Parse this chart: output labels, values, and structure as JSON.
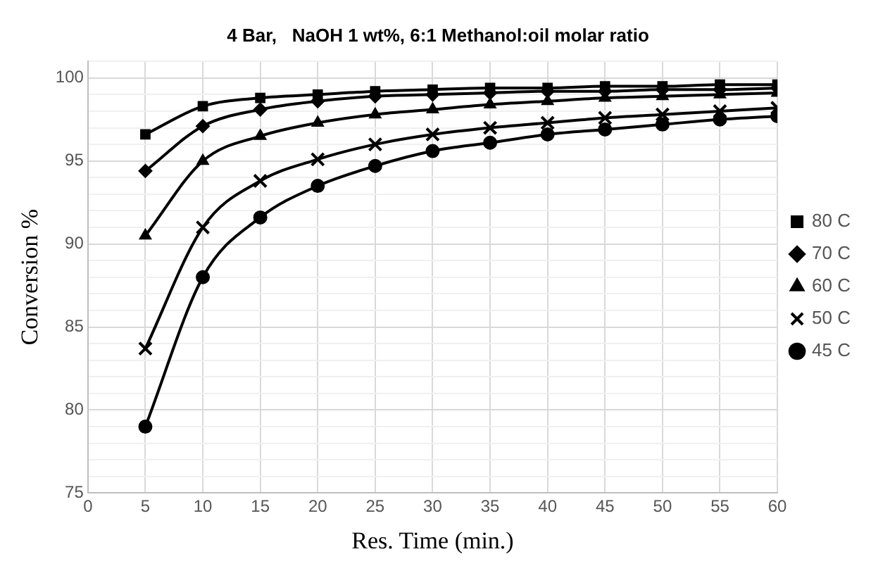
{
  "chart_data": {
    "type": "line",
    "title": "4 Bar,   NaOH 1 wt%, 6:1 Methanol:oil molar ratio",
    "xlabel": "Res. Time (min.)",
    "ylabel": "Conversion %",
    "x": [
      5,
      10,
      15,
      20,
      25,
      30,
      35,
      40,
      45,
      50,
      55,
      60
    ],
    "series": [
      {
        "name": "80 C",
        "color": "#000000",
        "marker": "square",
        "values": [
          96.6,
          98.3,
          98.8,
          99.0,
          99.2,
          99.3,
          99.4,
          99.4,
          99.5,
          99.5,
          99.6,
          99.6
        ]
      },
      {
        "name": "70 C",
        "color": "#000000",
        "marker": "diamond",
        "values": [
          94.4,
          97.1,
          98.1,
          98.6,
          98.9,
          99.0,
          99.1,
          99.2,
          99.2,
          99.3,
          99.3,
          99.4
        ]
      },
      {
        "name": "60 C",
        "color": "#000000",
        "marker": "triangle",
        "values": [
          90.5,
          95.0,
          96.5,
          97.3,
          97.8,
          98.1,
          98.4,
          98.6,
          98.8,
          98.9,
          99.0,
          99.1
        ]
      },
      {
        "name": "50 C",
        "color": "#000000",
        "marker": "cross",
        "values": [
          83.7,
          91.0,
          93.8,
          95.1,
          96.0,
          96.6,
          97.0,
          97.3,
          97.6,
          97.8,
          98.0,
          98.2
        ]
      },
      {
        "name": "45 C",
        "color": "#000000",
        "marker": "circle",
        "values": [
          79.0,
          88.0,
          91.6,
          93.5,
          94.7,
          95.6,
          96.1,
          96.6,
          96.9,
          97.2,
          97.5,
          97.7
        ]
      }
    ],
    "xlim": [
      0,
      60
    ],
    "xticks": [
      0,
      5,
      10,
      15,
      20,
      25,
      30,
      35,
      40,
      45,
      50,
      55,
      60
    ],
    "ylim": [
      75,
      101
    ],
    "yticks": [
      75,
      {
        "value": 76,
        "label": null
      },
      {
        "value": 77,
        "label": null
      },
      {
        "value": 78,
        "label": null
      },
      {
        "value": 79,
        "label": null
      },
      80,
      {
        "value": 81,
        "label": null
      },
      {
        "value": 82,
        "label": null
      },
      {
        "value": 83,
        "label": null
      },
      {
        "value": 84,
        "label": null
      },
      85,
      {
        "value": 86,
        "label": null
      },
      {
        "value": 87,
        "label": null
      },
      {
        "value": 88,
        "label": null
      },
      {
        "value": 89,
        "label": null
      },
      90,
      {
        "value": 91,
        "label": null
      },
      {
        "value": 92,
        "label": null
      },
      {
        "value": 93,
        "label": null
      },
      {
        "value": 94,
        "label": null
      },
      95,
      {
        "value": 96,
        "label": null
      },
      {
        "value": 97,
        "label": null
      },
      {
        "value": 98,
        "label": null
      },
      {
        "value": 99,
        "label": null
      },
      100,
      {
        "value": 101,
        "label": null
      }
    ],
    "grid": true,
    "legend": "right",
    "line_style": "solid"
  }
}
